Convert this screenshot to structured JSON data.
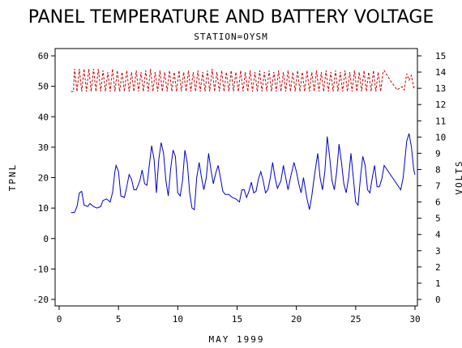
{
  "chart_data": {
    "type": "line",
    "title": "PANEL TEMPERATURE AND BATTERY VOLTAGE",
    "subtitle": "STATION=OYSM",
    "xlabel": "MAY 1999",
    "ylabel_left": "TPNL",
    "ylabel_right": "VOLTS",
    "xlim": [
      0,
      30
    ],
    "ylim_left": [
      -20,
      60
    ],
    "ylim_right": [
      0,
      15
    ],
    "x_ticks": [
      "0",
      "5",
      "10",
      "15",
      "20",
      "25",
      "30"
    ],
    "y_left_ticks": [
      "-20",
      "-10",
      "0",
      "10",
      "20",
      "30",
      "40",
      "50",
      "60"
    ],
    "y_right_ticks": [
      "0",
      "1",
      "2",
      "3",
      "4",
      "5",
      "6",
      "7",
      "8",
      "9",
      "10",
      "11",
      "12",
      "13",
      "14",
      "15"
    ],
    "grid": false,
    "series": [
      {
        "axis": "left",
        "color": "#0000cc",
        "style": "solid",
        "points": [
          [
            1.0,
            8.5
          ],
          [
            1.3,
            8.6
          ],
          [
            1.5,
            10.5
          ],
          [
            1.7,
            15
          ],
          [
            1.9,
            15.5
          ],
          [
            2.1,
            11
          ],
          [
            2.4,
            10.5
          ],
          [
            2.6,
            11.5
          ],
          [
            2.9,
            10.5
          ],
          [
            3.2,
            10
          ],
          [
            3.5,
            10.5
          ],
          [
            3.7,
            12.5
          ],
          [
            4.0,
            13
          ],
          [
            4.3,
            12
          ],
          [
            4.5,
            15
          ],
          [
            4.7,
            22
          ],
          [
            4.8,
            24
          ],
          [
            5.0,
            22
          ],
          [
            5.2,
            14
          ],
          [
            5.5,
            13.5
          ],
          [
            5.7,
            17
          ],
          [
            5.9,
            21
          ],
          [
            6.1,
            19.5
          ],
          [
            6.3,
            16
          ],
          [
            6.5,
            16
          ],
          [
            6.8,
            19
          ],
          [
            7.0,
            22.5
          ],
          [
            7.2,
            18
          ],
          [
            7.4,
            17.5
          ],
          [
            7.6,
            24
          ],
          [
            7.8,
            30.5
          ],
          [
            8.0,
            26
          ],
          [
            8.2,
            15
          ],
          [
            8.4,
            26
          ],
          [
            8.6,
            31.5
          ],
          [
            8.8,
            28
          ],
          [
            9.0,
            19
          ],
          [
            9.2,
            14
          ],
          [
            9.4,
            23
          ],
          [
            9.6,
            29
          ],
          [
            9.8,
            27
          ],
          [
            10.0,
            15
          ],
          [
            10.2,
            14
          ],
          [
            10.4,
            19
          ],
          [
            10.6,
            29
          ],
          [
            10.8,
            25
          ],
          [
            11.0,
            15
          ],
          [
            11.2,
            10
          ],
          [
            11.4,
            9.5
          ],
          [
            11.6,
            20
          ],
          [
            11.8,
            25
          ],
          [
            12.0,
            20
          ],
          [
            12.2,
            16
          ],
          [
            12.4,
            20
          ],
          [
            12.6,
            28
          ],
          [
            12.8,
            22.5
          ],
          [
            13.0,
            18
          ],
          [
            13.2,
            21.5
          ],
          [
            13.4,
            24
          ],
          [
            13.6,
            20
          ],
          [
            13.8,
            15.5
          ],
          [
            14.0,
            14.5
          ],
          [
            14.3,
            14.5
          ],
          [
            14.6,
            13.5
          ],
          [
            14.9,
            13
          ],
          [
            15.2,
            12
          ],
          [
            15.4,
            16
          ],
          [
            15.6,
            16
          ],
          [
            15.8,
            13.5
          ],
          [
            16.0,
            15.5
          ],
          [
            16.2,
            18.5
          ],
          [
            16.4,
            15
          ],
          [
            16.6,
            15.5
          ],
          [
            16.8,
            19.5
          ],
          [
            17.0,
            22
          ],
          [
            17.2,
            19
          ],
          [
            17.4,
            15
          ],
          [
            17.6,
            16
          ],
          [
            17.8,
            20
          ],
          [
            18.0,
            25
          ],
          [
            18.2,
            20
          ],
          [
            18.4,
            16.5
          ],
          [
            18.7,
            19
          ],
          [
            18.9,
            24
          ],
          [
            19.1,
            20
          ],
          [
            19.3,
            16
          ],
          [
            19.5,
            20
          ],
          [
            19.8,
            25
          ],
          [
            20.0,
            22
          ],
          [
            20.2,
            18
          ],
          [
            20.4,
            15
          ],
          [
            20.6,
            20
          ],
          [
            20.9,
            13
          ],
          [
            21.1,
            9.5
          ],
          [
            21.3,
            14
          ],
          [
            21.5,
            20
          ],
          [
            21.8,
            28
          ],
          [
            22.0,
            20
          ],
          [
            22.2,
            16
          ],
          [
            22.4,
            22
          ],
          [
            22.6,
            33.5
          ],
          [
            22.8,
            27
          ],
          [
            23.0,
            19
          ],
          [
            23.2,
            16
          ],
          [
            23.4,
            22
          ],
          [
            23.6,
            31
          ],
          [
            23.8,
            25
          ],
          [
            24.0,
            18
          ],
          [
            24.2,
            15
          ],
          [
            24.4,
            20
          ],
          [
            24.6,
            28
          ],
          [
            24.8,
            20
          ],
          [
            25.0,
            12
          ],
          [
            25.2,
            11
          ],
          [
            25.4,
            20
          ],
          [
            25.6,
            27
          ],
          [
            25.8,
            24
          ],
          [
            26.0,
            16
          ],
          [
            26.2,
            15
          ],
          [
            26.4,
            20
          ],
          [
            26.6,
            24
          ],
          [
            26.8,
            17
          ],
          [
            27.0,
            17
          ],
          [
            27.2,
            19.5
          ],
          [
            27.4,
            24
          ],
          [
            28.8,
            16
          ],
          [
            29.0,
            20
          ],
          [
            29.3,
            32
          ],
          [
            29.5,
            34.5
          ],
          [
            29.7,
            30
          ],
          [
            29.9,
            22.5
          ],
          [
            30.0,
            21
          ]
        ]
      },
      {
        "axis": "right",
        "color": "#cc0000",
        "style": "dashed",
        "points": [
          [
            1.0,
            12.8
          ],
          [
            1.2,
            12.8
          ],
          [
            1.3,
            14.2
          ],
          [
            1.5,
            12.8
          ],
          [
            1.7,
            14.2
          ],
          [
            1.9,
            12.8
          ],
          [
            2.1,
            14.2
          ],
          [
            2.3,
            12.8
          ],
          [
            2.5,
            14.2
          ],
          [
            2.7,
            12.8
          ],
          [
            2.9,
            14.2
          ],
          [
            3.1,
            12.8
          ],
          [
            3.3,
            14.2
          ],
          [
            3.5,
            12.8
          ],
          [
            3.7,
            14.1
          ],
          [
            3.9,
            12.8
          ],
          [
            4.1,
            14.0
          ],
          [
            4.3,
            12.8
          ],
          [
            4.5,
            14.2
          ],
          [
            4.7,
            12.8
          ],
          [
            4.9,
            14.1
          ],
          [
            5.1,
            12.8
          ],
          [
            5.3,
            14.0
          ],
          [
            5.5,
            12.8
          ],
          [
            5.7,
            14.1
          ],
          [
            5.9,
            12.8
          ],
          [
            6.1,
            14.0
          ],
          [
            6.3,
            12.8
          ],
          [
            6.5,
            14.1
          ],
          [
            6.7,
            12.8
          ],
          [
            6.9,
            14.0
          ],
          [
            7.1,
            12.8
          ],
          [
            7.3,
            14.1
          ],
          [
            7.5,
            12.8
          ],
          [
            7.7,
            14.2
          ],
          [
            7.9,
            12.8
          ],
          [
            8.1,
            14.0
          ],
          [
            8.3,
            12.8
          ],
          [
            8.5,
            14.1
          ],
          [
            8.7,
            12.8
          ],
          [
            8.9,
            14.0
          ],
          [
            9.1,
            12.8
          ],
          [
            9.3,
            14.1
          ],
          [
            9.5,
            12.8
          ],
          [
            9.7,
            14.0
          ],
          [
            9.9,
            12.8
          ],
          [
            10.1,
            14.1
          ],
          [
            10.3,
            12.8
          ],
          [
            10.5,
            14.0
          ],
          [
            10.7,
            12.8
          ],
          [
            10.9,
            14.1
          ],
          [
            11.1,
            12.8
          ],
          [
            11.3,
            14.0
          ],
          [
            11.5,
            12.8
          ],
          [
            11.7,
            14.1
          ],
          [
            11.9,
            12.8
          ],
          [
            12.1,
            14.0
          ],
          [
            12.3,
            12.8
          ],
          [
            12.5,
            14.1
          ],
          [
            12.7,
            12.8
          ],
          [
            12.9,
            14.2
          ],
          [
            13.1,
            12.8
          ],
          [
            13.3,
            14.0
          ],
          [
            13.5,
            12.8
          ],
          [
            13.7,
            14.1
          ],
          [
            13.9,
            12.8
          ],
          [
            14.1,
            14.0
          ],
          [
            14.3,
            12.8
          ],
          [
            14.5,
            14.1
          ],
          [
            14.7,
            12.8
          ],
          [
            14.9,
            14.0
          ],
          [
            15.1,
            12.8
          ],
          [
            15.3,
            14.1
          ],
          [
            15.5,
            12.8
          ],
          [
            15.7,
            14.0
          ],
          [
            15.9,
            12.8
          ],
          [
            16.1,
            14.1
          ],
          [
            16.3,
            12.8
          ],
          [
            16.5,
            14.0
          ],
          [
            16.7,
            12.8
          ],
          [
            16.9,
            14.1
          ],
          [
            17.1,
            12.8
          ],
          [
            17.3,
            14.0
          ],
          [
            17.5,
            12.8
          ],
          [
            17.7,
            14.1
          ],
          [
            17.9,
            12.8
          ],
          [
            18.1,
            14.0
          ],
          [
            18.3,
            12.8
          ],
          [
            18.5,
            14.1
          ],
          [
            18.7,
            12.8
          ],
          [
            18.9,
            14.0
          ],
          [
            19.1,
            12.8
          ],
          [
            19.3,
            14.1
          ],
          [
            19.5,
            12.8
          ],
          [
            19.7,
            14.0
          ],
          [
            19.9,
            12.8
          ],
          [
            20.1,
            14.1
          ],
          [
            20.3,
            12.8
          ],
          [
            20.5,
            14.0
          ],
          [
            20.7,
            12.8
          ],
          [
            20.9,
            14.1
          ],
          [
            21.1,
            12.8
          ],
          [
            21.3,
            14.0
          ],
          [
            21.5,
            12.8
          ],
          [
            21.7,
            14.1
          ],
          [
            21.9,
            12.8
          ],
          [
            22.1,
            14.0
          ],
          [
            22.3,
            12.8
          ],
          [
            22.5,
            14.1
          ],
          [
            22.7,
            12.8
          ],
          [
            22.9,
            14.0
          ],
          [
            23.1,
            12.8
          ],
          [
            23.3,
            14.1
          ],
          [
            23.5,
            12.8
          ],
          [
            23.7,
            14.0
          ],
          [
            23.9,
            12.8
          ],
          [
            24.1,
            14.1
          ],
          [
            24.3,
            12.8
          ],
          [
            24.5,
            14.0
          ],
          [
            24.7,
            12.8
          ],
          [
            24.9,
            14.1
          ],
          [
            25.1,
            12.8
          ],
          [
            25.3,
            14.0
          ],
          [
            25.5,
            12.8
          ],
          [
            25.7,
            14.1
          ],
          [
            25.9,
            12.8
          ],
          [
            26.1,
            14.0
          ],
          [
            26.3,
            12.8
          ],
          [
            26.5,
            14.1
          ],
          [
            26.7,
            12.8
          ],
          [
            26.9,
            14.0
          ],
          [
            27.1,
            12.8
          ],
          [
            27.3,
            14.0
          ],
          [
            27.4,
            14.1
          ],
          [
            28.0,
            13.4
          ],
          [
            28.5,
            12.9
          ],
          [
            28.9,
            13.1
          ],
          [
            29.1,
            12.9
          ],
          [
            29.3,
            13.9
          ],
          [
            29.5,
            13.5
          ],
          [
            29.7,
            13.8
          ],
          [
            29.9,
            13.0
          ],
          [
            30.0,
            13.1
          ]
        ]
      }
    ]
  }
}
